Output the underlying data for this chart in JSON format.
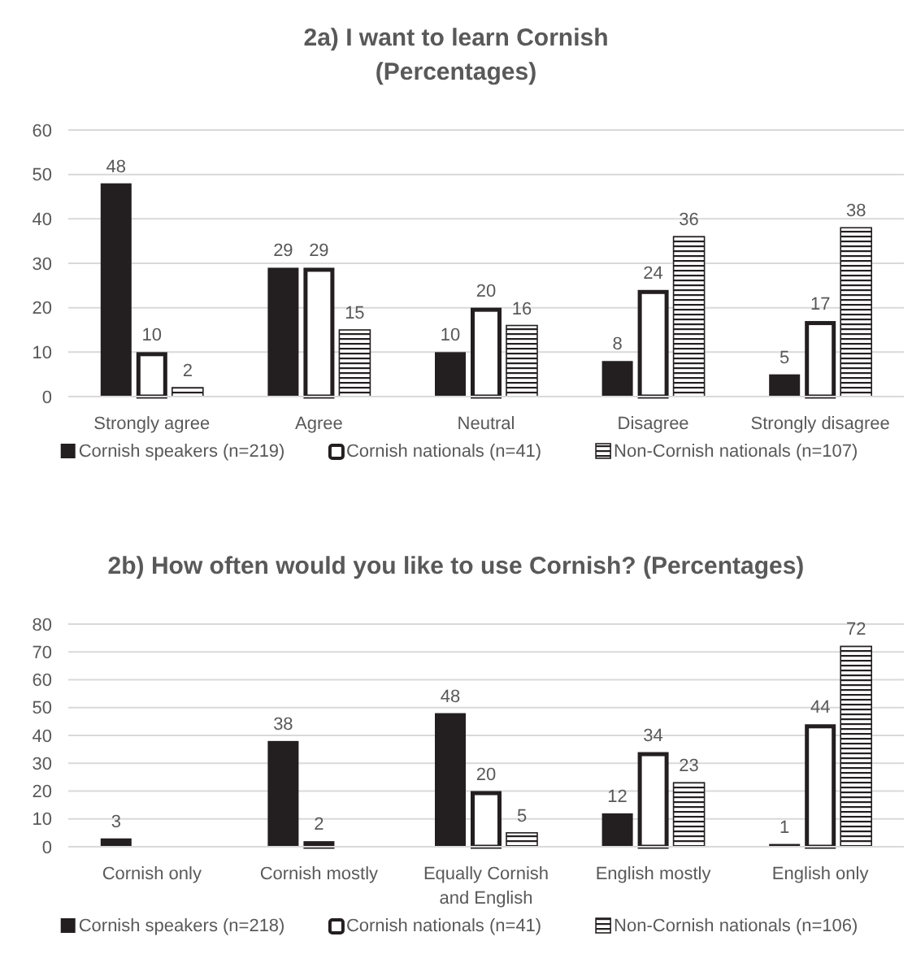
{
  "chart_data": [
    {
      "type": "bar",
      "title": "2a) I want to learn Cornish\n(Percentages)",
      "categories": [
        "Strongly agree",
        "Agree",
        "Neutral",
        "Disagree",
        "Strongly disagree"
      ],
      "series": [
        {
          "name": "Cornish speakers (n=219)",
          "color": "#231f20",
          "values": [
            48,
            29,
            10,
            8,
            5
          ]
        },
        {
          "name": "Cornish nationals (n=41)",
          "color": "#ffffff",
          "values": [
            10,
            29,
            20,
            24,
            17
          ]
        },
        {
          "name": "Non-Cornish nationals (n=107)",
          "color": "#231f20",
          "values": [
            2,
            15,
            16,
            36,
            38
          ]
        }
      ],
      "ylim": [
        0,
        60
      ],
      "yticks": [
        0,
        10,
        20,
        30,
        40,
        50,
        60
      ],
      "grid": "y",
      "legend": "bottom",
      "data_labels": true
    },
    {
      "type": "bar",
      "title": "2b) How often would you like to use Cornish? (Percentages)",
      "categories": [
        "Cornish only",
        "Cornish mostly",
        "Equally Cornish and English",
        "English mostly",
        "English only"
      ],
      "series": [
        {
          "name": "Cornish speakers (n=218)",
          "color": "#231f20",
          "values": [
            3,
            38,
            48,
            12,
            1
          ]
        },
        {
          "name": "Cornish nationals (n=41)",
          "color": "#ffffff",
          "values": [
            null,
            2,
            20,
            34,
            44
          ]
        },
        {
          "name": "Non-Cornish nationals (n=106)",
          "color": "#231f20",
          "values": [
            null,
            null,
            5,
            23,
            72
          ]
        }
      ],
      "ylim": [
        0,
        80
      ],
      "yticks": [
        0,
        10,
        20,
        30,
        40,
        50,
        60,
        70,
        80
      ],
      "grid": "y",
      "legend": "bottom",
      "data_labels": true
    }
  ]
}
